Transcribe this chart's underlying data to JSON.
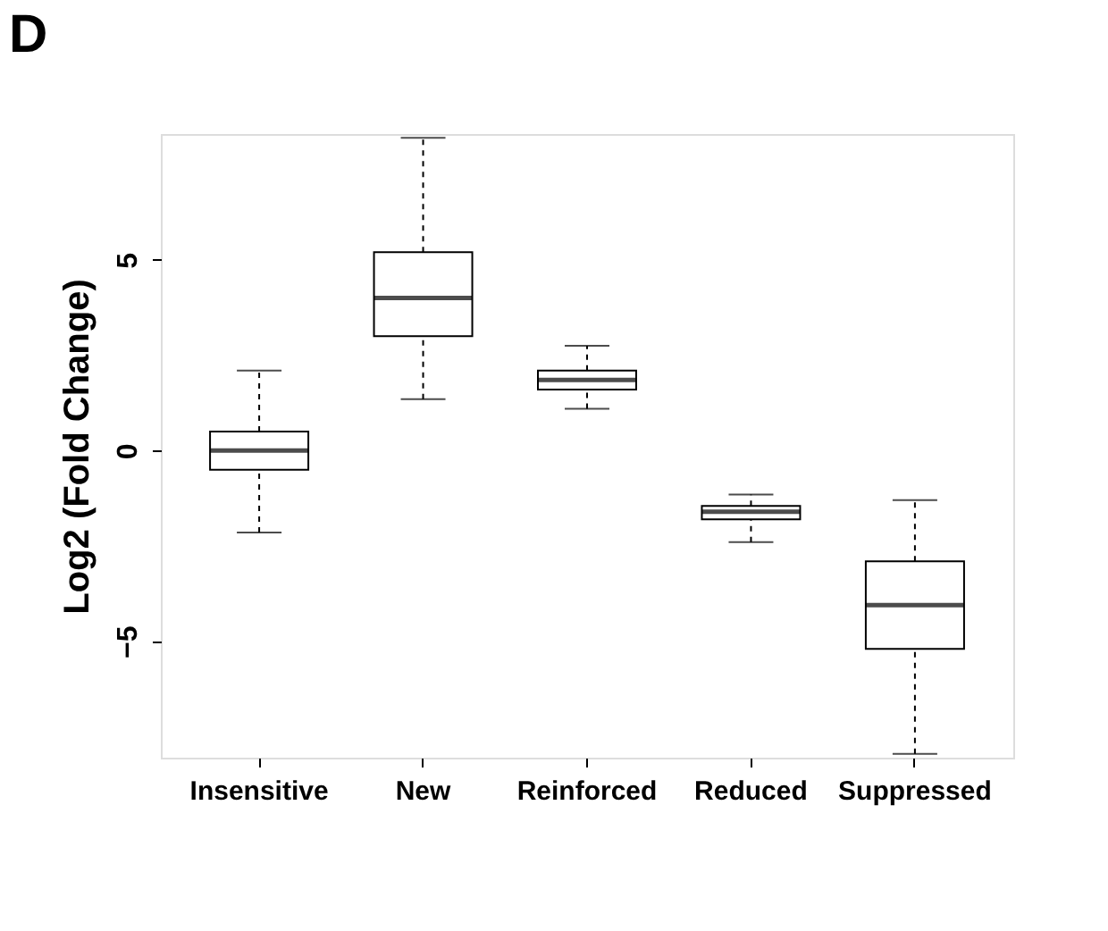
{
  "chart_data": {
    "type": "box",
    "title": "D",
    "ylabel": "Log2 (Fold Change)",
    "categories": [
      "Insensitive",
      "New",
      "Reinforced",
      "Reduced",
      "Suppressed"
    ],
    "boxes": [
      {
        "low": -2.15,
        "q1": -0.5,
        "median": 0,
        "q3": 0.5,
        "high": 2.1
      },
      {
        "low": 1.35,
        "q1": 3.0,
        "median": 4.0,
        "q3": 5.2,
        "high": 8.2
      },
      {
        "low": 1.1,
        "q1": 1.6,
        "median": 1.85,
        "q3": 2.1,
        "high": 2.75
      },
      {
        "low": -2.4,
        "q1": -1.8,
        "median": -1.6,
        "q3": -1.45,
        "high": -1.15
      },
      {
        "low": -7.95,
        "q1": -5.2,
        "median": -4.05,
        "q3": -2.9,
        "high": -1.3
      }
    ],
    "ylim": [
      -8.05,
      8.3
    ],
    "yticks": [
      -5,
      0,
      5
    ]
  }
}
